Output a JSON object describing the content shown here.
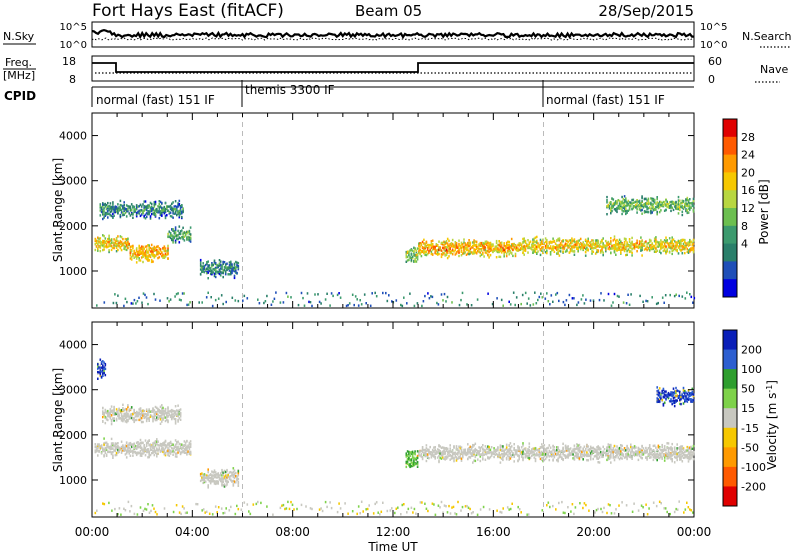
{
  "header": {
    "title": "Fort Hays East (fitACF)",
    "beam": "Beam 05",
    "date": "28/Sep/2015"
  },
  "status_panels": {
    "nsky_label": "N.Sky",
    "nsearch_label": "N.Search",
    "noise_ticks": [
      "10^5",
      "10^0"
    ],
    "freq_label_1": "Freq.",
    "freq_label_2": "[MHz]",
    "freq_ticks": [
      "18",
      "8"
    ],
    "nave_label": "Nave",
    "nave_ticks": [
      "60",
      "0"
    ],
    "cpid_label": "CPID",
    "cpid_segments": [
      {
        "label": "normal (fast) 151 IF",
        "start_hour": 0
      },
      {
        "label": "themis 3300 IF",
        "start_hour": 6
      },
      {
        "label": "normal (fast) 151 IF",
        "start_hour": 18
      }
    ]
  },
  "colorbars": {
    "power": {
      "label": "Power [dB]",
      "ticks": [
        "28",
        "24",
        "20",
        "16",
        "12",
        "8",
        "4"
      ],
      "colors": [
        "#e00000",
        "#ff5a00",
        "#ff9a00",
        "#f6c800",
        "#b8d640",
        "#6cbf50",
        "#3c9a6e",
        "#2a7f6a",
        "#1f4fb8",
        "#0000e0"
      ]
    },
    "velocity": {
      "label": "Velocity [m s",
      "label_sup": "-1",
      "label_end": "]",
      "ticks": [
        "200",
        "100",
        "50",
        "15",
        "-15",
        "-50",
        "-100",
        "-200"
      ],
      "colors": [
        "#0a1fb8",
        "#2d5fd0",
        "#2e9e2e",
        "#7ed24a",
        "#c8c8c0",
        "#f6c800",
        "#ff9a00",
        "#ff5a00",
        "#e00000"
      ]
    }
  },
  "x_axis": {
    "label": "Time UT",
    "ticks": [
      "00:00",
      "04:00",
      "08:00",
      "12:00",
      "16:00",
      "20:00",
      "00:00"
    ]
  },
  "chart_data": [
    {
      "type": "heatmap",
      "title": "Power [dB]",
      "xlabel": "Time UT",
      "ylabel": "Slant Range [km]",
      "xlim": [
        0,
        24
      ],
      "ylim": [
        180,
        4500
      ],
      "yticks": [
        1000,
        2000,
        3000,
        4000
      ],
      "colorbar_range": [
        0,
        30
      ],
      "echo_bands": [
        {
          "t_start": 0.1,
          "t_end": 1.5,
          "range_km": 1650,
          "power_db": 22
        },
        {
          "t_start": 1.5,
          "t_end": 3.0,
          "range_km": 1450,
          "power_db": 24
        },
        {
          "t_start": 3.0,
          "t_end": 3.9,
          "range_km": 1850,
          "power_db": 14
        },
        {
          "t_start": 0.3,
          "t_end": 3.6,
          "range_km": 2400,
          "power_db": 12
        },
        {
          "t_start": 4.3,
          "t_end": 5.8,
          "range_km": 1100,
          "power_db": 12
        },
        {
          "t_start": 13.0,
          "t_end": 17.0,
          "range_km": 1550,
          "power_db": 24
        },
        {
          "t_start": 17.0,
          "t_end": 24.0,
          "range_km": 1600,
          "power_db": 22
        },
        {
          "t_start": 20.5,
          "t_end": 24.0,
          "range_km": 2500,
          "power_db": 16
        },
        {
          "t_start": 12.5,
          "t_end": 13.0,
          "range_km": 1400,
          "power_db": 18
        }
      ]
    },
    {
      "type": "heatmap",
      "title": "Velocity [m s-1]",
      "xlabel": "Time UT",
      "ylabel": "Slant Range [km]",
      "xlim": [
        0,
        24
      ],
      "ylim": [
        180,
        4500
      ],
      "yticks": [
        1000,
        2000,
        3000,
        4000
      ],
      "colorbar_range": [
        -200,
        200
      ],
      "echo_bands": [
        {
          "t_start": 0.1,
          "t_end": 3.9,
          "range_km": 1750,
          "velocity": 0
        },
        {
          "t_start": 0.4,
          "t_end": 3.5,
          "range_km": 2500,
          "velocity": 0
        },
        {
          "t_start": 0.2,
          "t_end": 0.5,
          "range_km": 3500,
          "velocity": 200
        },
        {
          "t_start": 4.3,
          "t_end": 5.8,
          "range_km": 1100,
          "velocity": 0
        },
        {
          "t_start": 13.0,
          "t_end": 24.0,
          "range_km": 1650,
          "velocity": 0
        },
        {
          "t_start": 22.5,
          "t_end": 24.0,
          "range_km": 2900,
          "velocity": 200
        },
        {
          "t_start": 12.5,
          "t_end": 13.0,
          "range_km": 1500,
          "velocity": 50
        }
      ]
    }
  ]
}
